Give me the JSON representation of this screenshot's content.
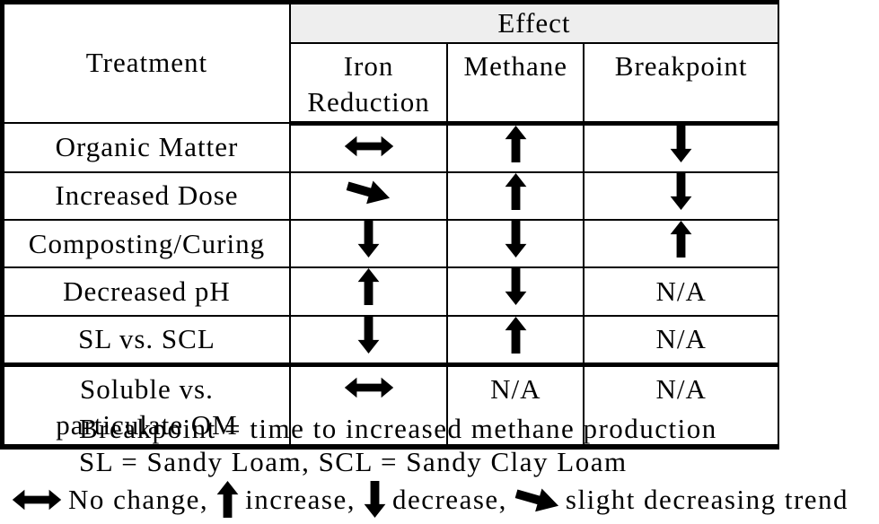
{
  "table": {
    "treatment_header": "Treatment",
    "effect_header": "Effect",
    "columns": [
      "Iron Reduction",
      "Methane",
      "Breakpoint"
    ],
    "rows": [
      {
        "treatment": "Organic Matter",
        "effects": [
          "no-change",
          "increase",
          "decrease"
        ]
      },
      {
        "treatment": "Increased Dose",
        "effects": [
          "slight-decrease",
          "increase",
          "decrease"
        ]
      },
      {
        "treatment": "Composting/Curing",
        "effects": [
          "decrease",
          "decrease",
          "increase"
        ]
      },
      {
        "treatment": "Decreased pH",
        "effects": [
          "increase",
          "decrease",
          "N/A"
        ]
      },
      {
        "treatment": "SL vs. SCL",
        "effects": [
          "decrease",
          "increase",
          "N/A"
        ]
      },
      {
        "treatment": "Soluble vs.\nparticulate OM",
        "effects": [
          "no-change",
          "N/A",
          "N/A"
        ]
      }
    ]
  },
  "notes": {
    "line1": "Breakpoint = time to increased methane production",
    "line2": "SL = Sandy Loam, SCL = Sandy Clay Loam",
    "legend": [
      {
        "symbol": "no-change",
        "label": "No change,"
      },
      {
        "symbol": "increase",
        "label": "increase,"
      },
      {
        "symbol": "decrease",
        "label": "decrease,"
      },
      {
        "symbol": "slight-decrease",
        "label": "slight decreasing trend"
      }
    ]
  },
  "colors": {
    "effect_header_bg": "#eeeeee",
    "border": "#000000",
    "text": "#000000",
    "arrow": "#000000"
  }
}
